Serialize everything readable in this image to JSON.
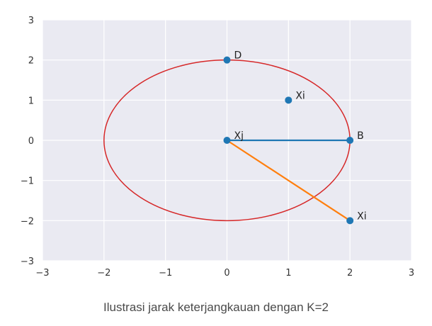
{
  "chart_data": {
    "type": "scatter",
    "xlim": [
      -3,
      3
    ],
    "ylim": [
      -3,
      3
    ],
    "xticks": [
      -3,
      -2,
      -1,
      0,
      1,
      2,
      3
    ],
    "yticks": [
      -3,
      -2,
      -1,
      0,
      1,
      2,
      3
    ],
    "grid": true,
    "points": [
      {
        "label": "D",
        "x": 0,
        "y": 2
      },
      {
        "label": "Xi",
        "x": 1,
        "y": 1
      },
      {
        "label": "Xj",
        "x": 0,
        "y": 0
      },
      {
        "label": "B",
        "x": 2,
        "y": 0
      },
      {
        "label": "Xi",
        "x": 2,
        "y": -2
      }
    ],
    "segments": [
      {
        "from": [
          0,
          0
        ],
        "to": [
          2,
          0
        ],
        "color": "#1f77b4"
      },
      {
        "from": [
          0,
          0
        ],
        "to": [
          2,
          -2
        ],
        "color": "#ff7f0e"
      }
    ],
    "circle": {
      "center": [
        0,
        0
      ],
      "radius": 2,
      "color": "#d62728"
    },
    "colors": {
      "background": "#eaeaf2",
      "grid": "#ffffff",
      "point": "#1f77b4"
    }
  },
  "caption": "Ilustrasi jarak keterjangkauan dengan K=2"
}
